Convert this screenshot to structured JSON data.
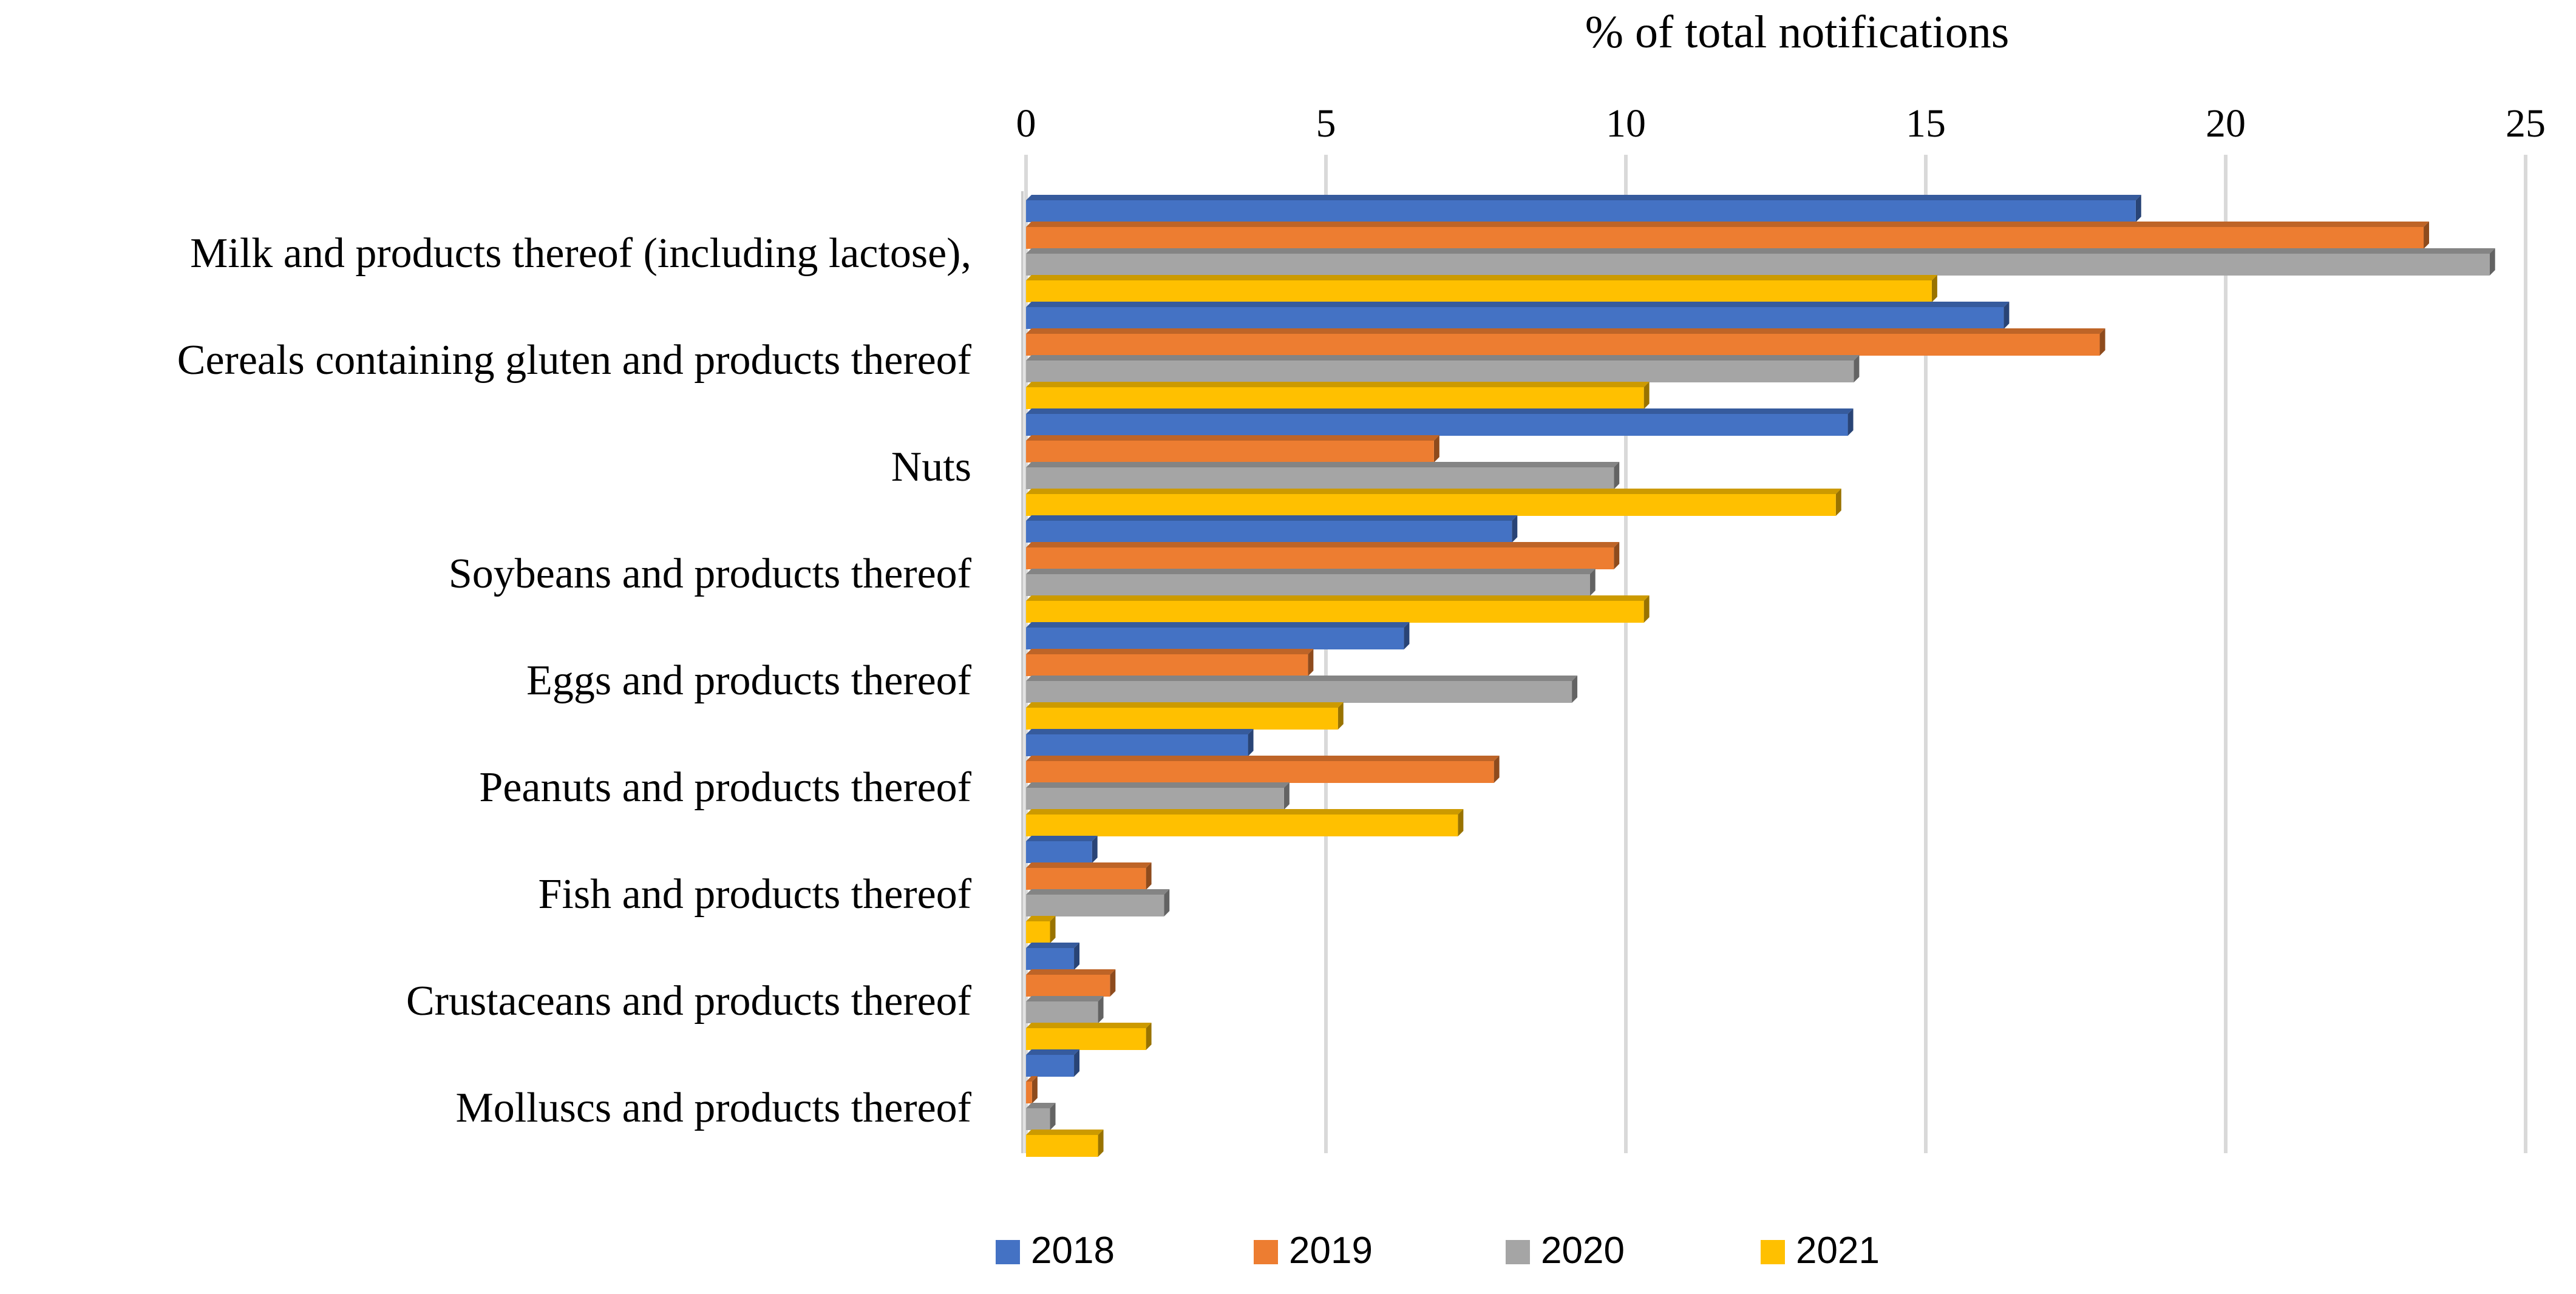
{
  "chart_data": {
    "type": "bar",
    "orientation": "horizontal",
    "title": "",
    "xlabel": "% of total notifications",
    "ylabel": "",
    "xlim": [
      0,
      25
    ],
    "xticks": [
      0,
      5,
      10,
      15,
      20,
      25
    ],
    "x_axis_position": "top",
    "grid": true,
    "legend_position": "bottom",
    "categories": [
      "Milk and products thereof (including lactose),",
      "Cereals containing gluten and products thereof",
      "Nuts",
      "Soybeans and products thereof",
      "Eggs and products thereof",
      "Peanuts and products thereof",
      "Fish and products thereof",
      "Crustaceans and products thereof",
      "Molluscs and products thereof"
    ],
    "series": [
      {
        "name": "2018",
        "color": "#4472c4",
        "values": [
          18.5,
          16.3,
          13.7,
          8.1,
          6.3,
          3.7,
          1.1,
          0.8,
          0.8
        ]
      },
      {
        "name": "2019",
        "color": "#ed7d31",
        "values": [
          23.3,
          17.9,
          6.8,
          9.8,
          4.7,
          7.8,
          2.0,
          1.4,
          0.1
        ]
      },
      {
        "name": "2020",
        "color": "#a5a5a5",
        "values": [
          24.4,
          13.8,
          9.8,
          9.4,
          9.1,
          4.3,
          2.3,
          1.2,
          0.4
        ]
      },
      {
        "name": "2021",
        "color": "#ffc000",
        "values": [
          15.1,
          10.3,
          13.5,
          10.3,
          5.2,
          7.2,
          0.4,
          2.0,
          1.2
        ]
      }
    ]
  }
}
